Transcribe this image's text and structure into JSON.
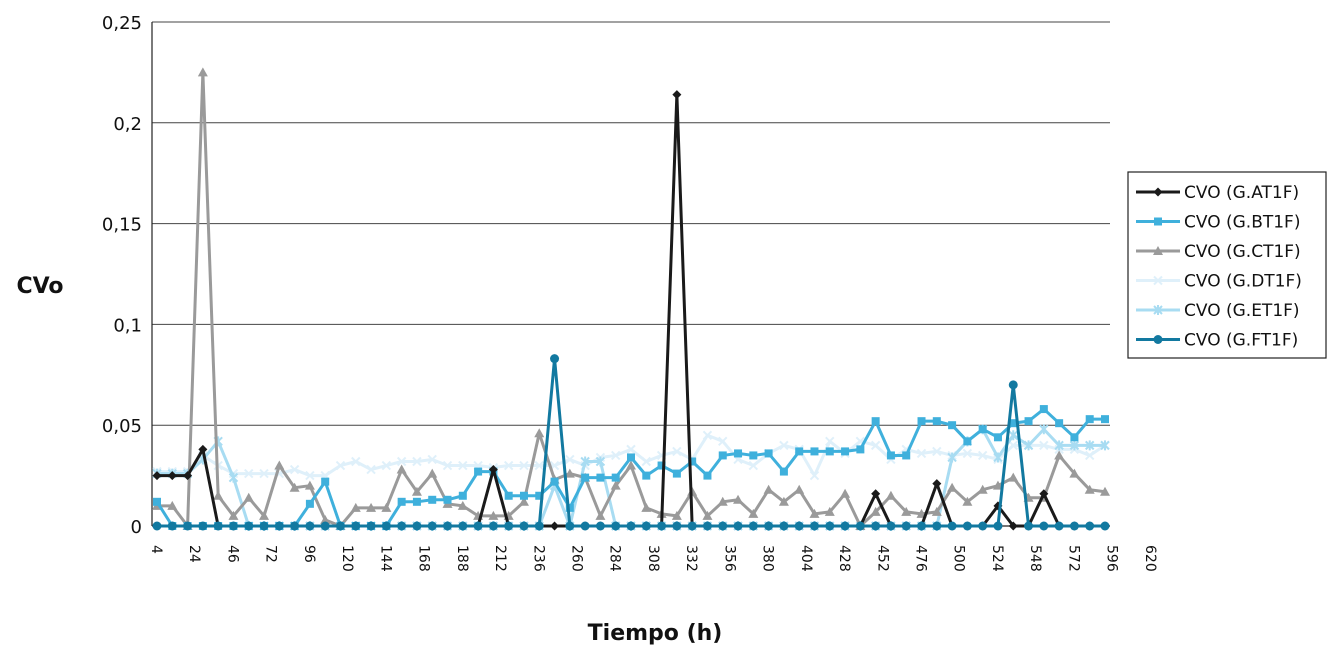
{
  "chart_data": {
    "type": "line",
    "title": "",
    "xlabel": "Tiempo (h)",
    "ylabel": "CVo",
    "ylim": [
      0,
      0.25
    ],
    "yticks": [
      0,
      0.05,
      0.1,
      0.15,
      0.2,
      0.25
    ],
    "ytick_labels": [
      "0",
      "0,05",
      "0,1",
      "0,15",
      "0,2",
      "0,25"
    ],
    "x_tick_labels": [
      "4",
      "24",
      "46",
      "72",
      "96",
      "120",
      "144",
      "168",
      "188",
      "212",
      "236",
      "260",
      "284",
      "308",
      "332",
      "356",
      "380",
      "404",
      "428",
      "452",
      "476",
      "500",
      "524",
      "548",
      "572",
      "596",
      "620"
    ],
    "grid": "horizontal",
    "legend_position": "right",
    "n_points": 63,
    "tick_every": 2.5,
    "series": [
      {
        "name": "CVO (G.AT1F)",
        "color": "#1a1a1a",
        "marker": "diamond",
        "values": [
          0.025,
          0.025,
          0.025,
          0.038,
          0,
          0,
          0,
          0,
          0,
          0,
          0,
          0,
          0,
          0,
          0,
          0,
          0,
          0,
          0,
          0,
          0,
          0,
          0.028,
          0,
          0,
          0,
          0,
          0,
          0,
          0,
          0,
          0,
          0,
          0,
          0.214,
          0,
          0,
          0,
          0,
          0,
          0,
          0,
          0,
          0,
          0,
          0,
          0,
          0.016,
          0,
          0,
          0,
          0.021,
          0,
          0,
          0,
          0.01,
          0,
          0,
          0.016,
          0,
          0,
          0,
          0
        ]
      },
      {
        "name": "CVO (G.BT1F)",
        "color": "#3fb0dc",
        "marker": "square",
        "values": [
          0.012,
          0,
          0,
          0,
          0,
          0,
          0,
          0,
          0,
          0,
          0.011,
          0.022,
          0,
          0,
          0,
          0,
          0.012,
          0.012,
          0.013,
          0.013,
          0.015,
          0.027,
          0.027,
          0.015,
          0.015,
          0.015,
          0.022,
          0.009,
          0.024,
          0.024,
          0.024,
          0.034,
          0.025,
          0.03,
          0.026,
          0.032,
          0.025,
          0.035,
          0.036,
          0.035,
          0.036,
          0.027,
          0.037,
          0.037,
          0.037,
          0.037,
          0.038,
          0.052,
          0.035,
          0.035,
          0.052,
          0.052,
          0.05,
          0.042,
          0.048,
          0.044,
          0.051,
          0.052,
          0.058,
          0.051,
          0.044,
          0.053,
          0.053
        ]
      },
      {
        "name": "CVO (G.CT1F)",
        "color": "#9a9a9a",
        "marker": "triangle",
        "values": [
          0.01,
          0.01,
          0,
          0.225,
          0.015,
          0.005,
          0.014,
          0.005,
          0.03,
          0.019,
          0.02,
          0.003,
          0,
          0.009,
          0.009,
          0.009,
          0.028,
          0.017,
          0.026,
          0.011,
          0.01,
          0.005,
          0.005,
          0.005,
          0.012,
          0.046,
          0.023,
          0.026,
          0.024,
          0.005,
          0.02,
          0.03,
          0.009,
          0.006,
          0.005,
          0.017,
          0.005,
          0.012,
          0.013,
          0.006,
          0.018,
          0.012,
          0.018,
          0.006,
          0.007,
          0.016,
          0,
          0.007,
          0.015,
          0.007,
          0.006,
          0.007,
          0.019,
          0.012,
          0.018,
          0.02,
          0.024,
          0.014,
          0.014,
          0.035,
          0.026,
          0.018,
          0.017
        ]
      },
      {
        "name": "CVO (G.DT1F)",
        "color": "#dff0fa",
        "marker": "cross",
        "values": [
          0.027,
          0.027,
          0.027,
          0.035,
          0.03,
          0.026,
          0.026,
          0.026,
          0.026,
          0.028,
          0.025,
          0.025,
          0.03,
          0.032,
          0.028,
          0.03,
          0.032,
          0.032,
          0.033,
          0.03,
          0.03,
          0.03,
          0.029,
          0.03,
          0.03,
          0.03,
          0.03,
          0.033,
          0.03,
          0.034,
          0.035,
          0.038,
          0.032,
          0.035,
          0.037,
          0.033,
          0.045,
          0.042,
          0.033,
          0.03,
          0.036,
          0.04,
          0.038,
          0.025,
          0.042,
          0.036,
          0.042,
          0.04,
          0.033,
          0.038,
          0.036,
          0.037,
          0.035,
          0.036,
          0.035,
          0.033,
          0.04,
          0.04,
          0.04,
          0.038,
          0.038,
          0.035,
          0.04
        ]
      },
      {
        "name": "CVO (G.ET1F)",
        "color": "#a8dcf2",
        "marker": "star",
        "values": [
          0.026,
          0.026,
          0.026,
          0.033,
          0.042,
          0.024,
          0,
          0,
          0,
          0,
          0,
          0,
          0,
          0,
          0,
          0,
          0,
          0,
          0,
          0,
          0,
          0,
          0,
          0,
          0,
          0,
          0.02,
          0,
          0.032,
          0.032,
          0,
          0,
          0,
          0,
          0,
          0,
          0,
          0,
          0,
          0,
          0,
          0,
          0,
          0,
          0,
          0,
          0,
          0,
          0,
          0,
          0,
          0,
          0.034,
          0.042,
          0.048,
          0.034,
          0.045,
          0.04,
          0.048,
          0.04,
          0.04,
          0.04,
          0.04
        ]
      },
      {
        "name": "CVO (G.FT1F)",
        "color": "#1279a0",
        "marker": "circle",
        "values": [
          0,
          0,
          0,
          0,
          0,
          0,
          0,
          0,
          0,
          0,
          0,
          0,
          0,
          0,
          0,
          0,
          0,
          0,
          0,
          0,
          0,
          0,
          0,
          0,
          0,
          0,
          0.083,
          0,
          0,
          0,
          0,
          0,
          0,
          0,
          0,
          0,
          0,
          0,
          0,
          0,
          0,
          0,
          0,
          0,
          0,
          0,
          0,
          0,
          0,
          0,
          0,
          0,
          0,
          0,
          0,
          0,
          0.07,
          0,
          0,
          0,
          0,
          0,
          0
        ]
      }
    ]
  }
}
